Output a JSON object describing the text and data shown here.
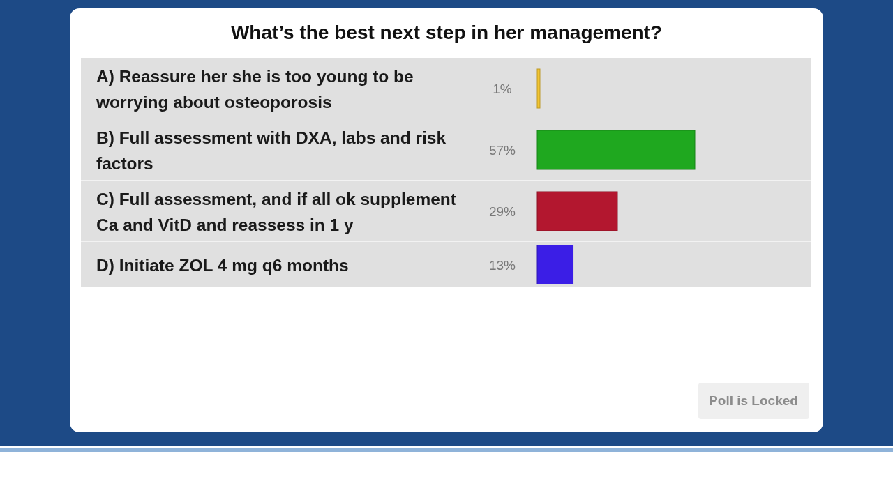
{
  "chart_data": {
    "type": "bar",
    "orientation": "horizontal",
    "title": "What’s the best next step in her management?",
    "categories": [
      "A) Reassure her she is too young to be worrying about osteoporosis",
      "B) Full assessment with DXA, labs and risk factors",
      "C) Full assessment, and if all ok supplement Ca and VitD and reassess in 1 y",
      "D) Initiate ZOL 4 mg q6 months"
    ],
    "values": [
      1,
      57,
      29,
      13
    ],
    "value_labels": [
      "1%",
      "57%",
      "29%",
      "13%"
    ],
    "colors": [
      "#f2c531",
      "#1fa81f",
      "#b3172f",
      "#3b1ee6"
    ],
    "annotations": [
      "Poll is Locked"
    ]
  }
}
